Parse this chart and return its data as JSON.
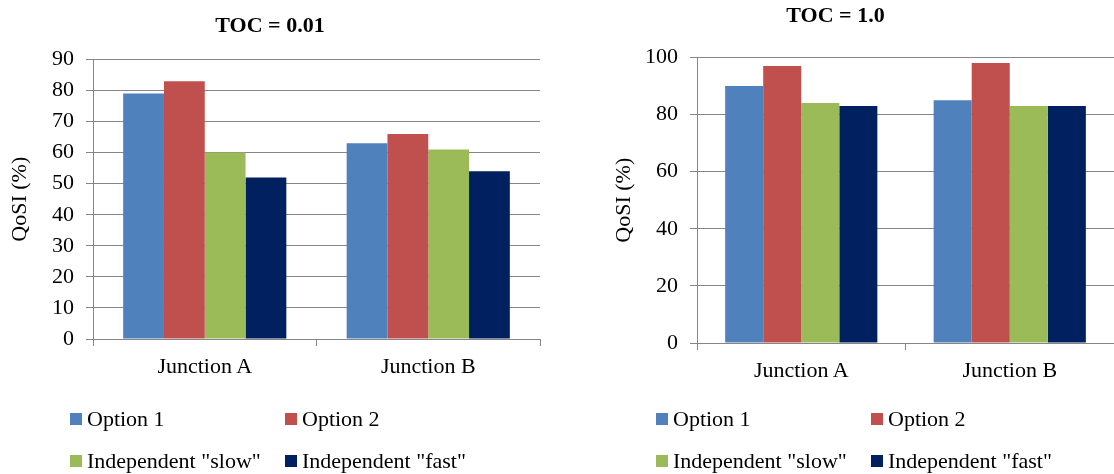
{
  "chart_data": [
    {
      "type": "bar",
      "title": "TOC = 0.01",
      "ylabel": "QoSI (%)",
      "categories": [
        "Junction A",
        "Junction B"
      ],
      "series": [
        {
          "name": "Option 1",
          "color": "#4f81bd",
          "values": [
            79,
            63
          ]
        },
        {
          "name": "Option 2",
          "color": "#c0504d",
          "values": [
            83,
            66
          ]
        },
        {
          "name": "Independent \"slow\"",
          "color": "#9bbb59",
          "values": [
            60,
            61
          ]
        },
        {
          "name": "Independent \"fast\"",
          "color": "#002060",
          "values": [
            52,
            54
          ]
        }
      ],
      "ylim": [
        0,
        90
      ],
      "yticks": [
        0,
        10,
        20,
        30,
        40,
        50,
        60,
        70,
        80,
        90
      ],
      "grid": "y",
      "legend": "bottom"
    },
    {
      "type": "bar",
      "title": "TOC = 1.0",
      "ylabel": "QoSI (%)",
      "categories": [
        "Junction A",
        "Junction B"
      ],
      "series": [
        {
          "name": "Option 1",
          "color": "#4f81bd",
          "values": [
            90,
            85
          ]
        },
        {
          "name": "Option 2",
          "color": "#c0504d",
          "values": [
            97,
            98
          ]
        },
        {
          "name": "Independent \"slow\"",
          "color": "#9bbb59",
          "values": [
            84,
            83
          ]
        },
        {
          "name": "Independent \"fast\"",
          "color": "#002060",
          "values": [
            83,
            83
          ]
        }
      ],
      "ylim": [
        0,
        100
      ],
      "yticks": [
        0,
        20,
        40,
        60,
        80,
        100
      ],
      "grid": "y",
      "legend": "bottom"
    }
  ]
}
